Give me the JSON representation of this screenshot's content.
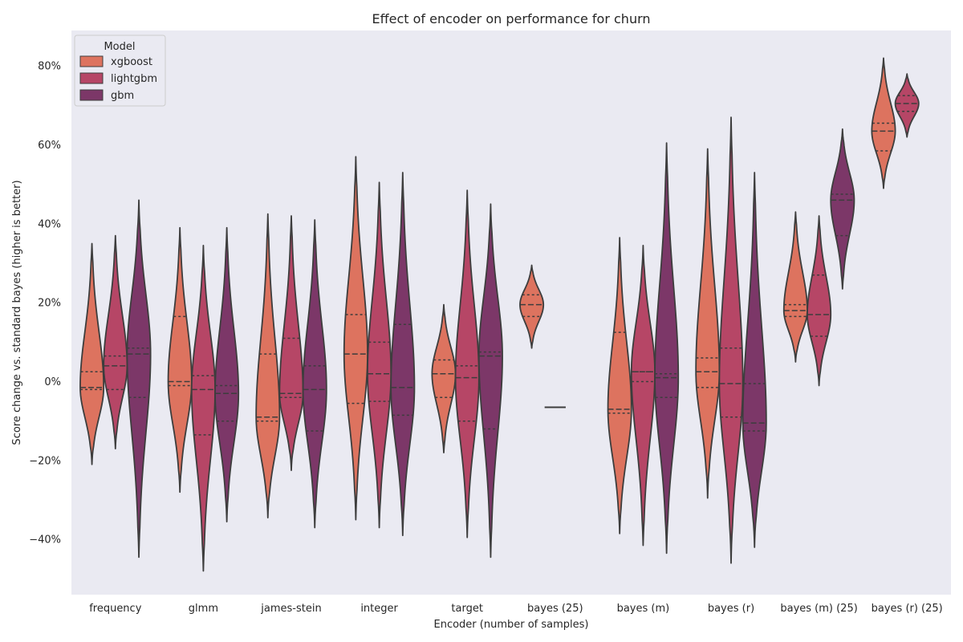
{
  "chart_data": {
    "type": "violin",
    "title": "Effect of encoder on performance for churn",
    "xlabel": "Encoder (number of samples)",
    "ylabel": "Score change vs. standard bayes (higher is better)",
    "ylim": [
      -54,
      89
    ],
    "yticks": [
      -40,
      -20,
      0,
      20,
      40,
      60,
      80
    ],
    "ytick_labels": [
      "−40%",
      "−20%",
      "0%",
      "20%",
      "40%",
      "60%",
      "80%"
    ],
    "grid": false,
    "legend": {
      "title": "Model",
      "placement": "top-left"
    },
    "categories": [
      "frequency",
      "glmm",
      "james-stein",
      "integer",
      "target",
      "bayes (25)",
      "bayes (m)",
      "bayes (r)",
      "bayes (m) (25)",
      "bayes (r) (25)"
    ],
    "series": [
      {
        "name": "xgboost",
        "color": "#dd735f",
        "violins": [
          {
            "category": "frequency",
            "min": -21,
            "max": 35,
            "q1": -2,
            "median": -1.5,
            "q3": 2.5
          },
          {
            "category": "glmm",
            "min": -28,
            "max": 39,
            "q1": -1,
            "median": 0,
            "q3": 16.5
          },
          {
            "category": "james-stein",
            "min": -34.5,
            "max": 42.5,
            "q1": -10,
            "median": -9,
            "q3": 7
          },
          {
            "category": "integer",
            "min": -35,
            "max": 57,
            "q1": -5.5,
            "median": 7,
            "q3": 17
          },
          {
            "category": "target",
            "min": -18,
            "max": 19.5,
            "q1": -4,
            "median": 2,
            "q3": 5.5
          },
          {
            "category": "bayes (25)",
            "min": 8.5,
            "max": 29.5,
            "q1": 16.5,
            "median": 19.5,
            "q3": 22
          },
          {
            "category": "bayes (m)",
            "min": -38.5,
            "max": 36.5,
            "q1": -8,
            "median": -7,
            "q3": 12.5
          },
          {
            "category": "bayes (r)",
            "min": -29.5,
            "max": 59,
            "q1": -1.5,
            "median": 2.5,
            "q3": 6
          },
          {
            "category": "bayes (m) (25)",
            "min": 5,
            "max": 43,
            "q1": 16.5,
            "median": 18,
            "q3": 19.5
          },
          {
            "category": "bayes (r) (25)",
            "min": 49,
            "max": 82,
            "q1": 58.5,
            "median": 63.5,
            "q3": 65.5
          }
        ]
      },
      {
        "name": "lightgbm",
        "color": "#b64666",
        "violins": [
          {
            "category": "frequency",
            "min": -17,
            "max": 37,
            "q1": -2,
            "median": 4,
            "q3": 6.5
          },
          {
            "category": "glmm",
            "min": -48,
            "max": 34.5,
            "q1": -13.5,
            "median": -2,
            "q3": 1.5
          },
          {
            "category": "james-stein",
            "min": -22.5,
            "max": 42,
            "q1": -4,
            "median": -3,
            "q3": 11
          },
          {
            "category": "integer",
            "min": -37,
            "max": 50.5,
            "q1": -5,
            "median": 2,
            "q3": 10
          },
          {
            "category": "target",
            "min": -39.5,
            "max": 48.5,
            "q1": -10,
            "median": 1,
            "q3": 4
          },
          {
            "category": "bayes (25)",
            "min": -6.5,
            "max": -6.5,
            "q1": -6.5,
            "median": -6.5,
            "q3": -6.5
          },
          {
            "category": "bayes (m)",
            "min": -41.5,
            "max": 34.5,
            "q1": 0,
            "median": 2.5,
            "q3": 2.5
          },
          {
            "category": "bayes (r)",
            "min": -46,
            "max": 67,
            "q1": -9,
            "median": -0.5,
            "q3": 8.5
          },
          {
            "category": "bayes (m) (25)",
            "min": -1,
            "max": 42,
            "q1": 11.5,
            "median": 17,
            "q3": 27
          },
          {
            "category": "bayes (r) (25)",
            "min": 62,
            "max": 78,
            "q1": 68.5,
            "median": 70.5,
            "q3": 72.5
          }
        ]
      },
      {
        "name": "gbm",
        "color": "#7c3768",
        "violins": [
          {
            "category": "frequency",
            "min": -44.5,
            "max": 46,
            "q1": -4,
            "median": 7,
            "q3": 8.5
          },
          {
            "category": "glmm",
            "min": -35.5,
            "max": 39,
            "q1": -10,
            "median": -3,
            "q3": -1
          },
          {
            "category": "james-stein",
            "min": -37,
            "max": 41,
            "q1": -12.5,
            "median": -2,
            "q3": 4
          },
          {
            "category": "integer",
            "min": -39,
            "max": 53,
            "q1": -8.5,
            "median": -1.5,
            "q3": 14.5
          },
          {
            "category": "target",
            "min": -44.5,
            "max": 45,
            "q1": -12,
            "median": 6.5,
            "q3": 7.5
          },
          {
            "category": "bayes (m)",
            "min": -43.5,
            "max": 60.5,
            "q1": -4,
            "median": 1,
            "q3": 2
          },
          {
            "category": "bayes (r)",
            "min": -42,
            "max": 53,
            "q1": -12.5,
            "median": -10.5,
            "q3": -0.5
          },
          {
            "category": "bayes (m) (25)",
            "min": 23.5,
            "max": 64,
            "q1": 37,
            "median": 46,
            "q3": 47.5
          }
        ]
      }
    ]
  }
}
